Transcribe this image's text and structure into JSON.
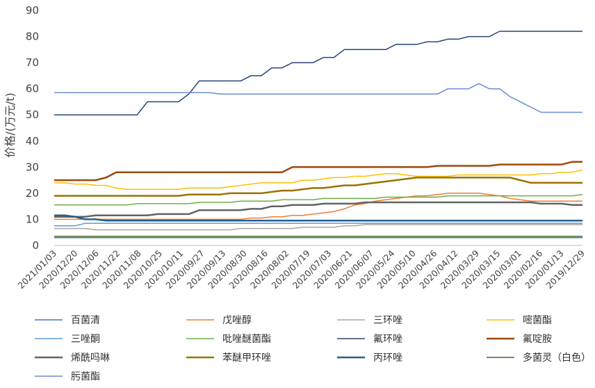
{
  "chart_data": {
    "type": "line",
    "ylabel": "价格/(万元/t)",
    "ylim": [
      0,
      90
    ],
    "yticks": [
      0,
      10,
      20,
      30,
      40,
      50,
      60,
      70,
      80,
      90
    ],
    "grid": false,
    "legend_position": "bottom",
    "x_tick_labels": [
      "2021/01/03",
      "2020/12/20",
      "2020/12/06",
      "2020/11/22",
      "2020/11/08",
      "2020/10/25",
      "2020/10/11",
      "2020/09/27",
      "2020/09/13",
      "2020/08/30",
      "2020/08/16",
      "2020/08/02",
      "2020/07/19",
      "2020/07/03",
      "2020/06/21",
      "2020/06/07",
      "2020/05/24",
      "2020/05/10",
      "2020/04/26",
      "2020/04/12",
      "2020/03/29",
      "2020/03/15",
      "2020/03/01",
      "2020/02/16",
      "2020/01/13",
      "2019/12/29"
    ],
    "x": [
      "2021/01/03",
      "",
      "2020/12/20",
      "",
      "2020/12/06",
      "",
      "2020/11/22",
      "",
      "2020/11/08",
      "",
      "2020/10/25",
      "",
      "2020/10/11",
      "",
      "2020/09/27",
      "",
      "2020/09/13",
      "",
      "2020/08/30",
      "",
      "2020/08/16",
      "",
      "2020/08/02",
      "",
      "2020/07/19",
      "",
      "2020/07/03",
      "",
      "2020/06/21",
      "",
      "2020/06/07",
      "",
      "2020/05/24",
      "",
      "2020/05/10",
      "",
      "2020/04/26",
      "",
      "2020/04/12",
      "",
      "2020/03/29",
      "",
      "2020/03/15",
      "",
      "2020/03/01",
      "",
      "2020/02/16",
      "",
      "2020/01/13",
      "",
      "2019/12/29",
      ""
    ],
    "series": [
      {
        "name": "百菌清",
        "color": "#4472C4",
        "width": 1.5,
        "values": [
          3,
          3,
          3,
          3,
          3,
          3,
          3,
          3,
          3,
          3,
          3,
          3,
          3,
          3,
          3,
          3,
          3,
          3,
          3,
          3,
          3,
          3,
          3,
          3,
          3,
          3,
          3,
          3,
          3,
          3,
          3,
          3,
          3,
          3,
          3,
          3,
          3,
          3,
          3,
          3,
          3,
          3,
          3,
          3,
          3,
          3,
          3,
          3,
          3,
          3,
          3,
          3
        ]
      },
      {
        "name": "戊唑醇",
        "color": "#ED7D31",
        "width": 1.5,
        "values": [
          10,
          10,
          10,
          10,
          10,
          10,
          10,
          10,
          10,
          10,
          10,
          10,
          10,
          10,
          10,
          10,
          10,
          10,
          10,
          10.5,
          10.5,
          11,
          11,
          11.5,
          11.5,
          12,
          12.5,
          13,
          14,
          15.5,
          16,
          17,
          17.5,
          18,
          18.5,
          19,
          19,
          19.5,
          20,
          20,
          20,
          20,
          19.5,
          19,
          18,
          17.5,
          17,
          17,
          17,
          17,
          17,
          17
        ]
      },
      {
        "name": "三环唑",
        "color": "#A5A5A5",
        "width": 1.5,
        "values": [
          6.5,
          6.5,
          6.5,
          6.5,
          6,
          6,
          6,
          6,
          6,
          6,
          6,
          6,
          6,
          6,
          6,
          6,
          6,
          6,
          6.5,
          6.5,
          6.5,
          6.5,
          6.5,
          6.5,
          7,
          7,
          7,
          7,
          7.5,
          7.5,
          8,
          8,
          8,
          8,
          8,
          8,
          8,
          8,
          8,
          8,
          8,
          8,
          8,
          8,
          8,
          8,
          8,
          8,
          8,
          8,
          8,
          8
        ]
      },
      {
        "name": "嘧菌酯",
        "color": "#FFC000",
        "width": 1.5,
        "values": [
          24,
          24,
          23.5,
          23.5,
          23,
          23,
          22,
          21.5,
          21.5,
          21.5,
          21.5,
          21.5,
          21.5,
          22,
          22,
          22,
          22,
          22.5,
          23,
          23.5,
          24,
          24,
          24,
          24,
          25,
          25,
          25.5,
          26,
          26,
          26.5,
          26.5,
          27,
          27.5,
          27.5,
          27,
          26.5,
          26.5,
          26.5,
          26.5,
          27,
          27,
          27,
          27,
          27,
          27,
          27,
          27,
          27.5,
          27.5,
          28,
          28,
          29
        ]
      },
      {
        "name": "三唑酮",
        "color": "#5B9BD5",
        "width": 1.5,
        "values": [
          7.5,
          7.5,
          7.5,
          8.5,
          8.5,
          8.5,
          8.5,
          8.5,
          8.5,
          8.5,
          8.5,
          8.5,
          8.5,
          8.5,
          8.5,
          8.5,
          8.5,
          8.5,
          8.5,
          8.5,
          8.5,
          8.5,
          8.5,
          8.5,
          8.5,
          8.5,
          8.5,
          8.5,
          8.5,
          8.5,
          8.5,
          8.5,
          8.5,
          8.5,
          8.5,
          8.5,
          8.5,
          8.5,
          8.5,
          8.5,
          8.5,
          8.5,
          8.5,
          8.5,
          8.5,
          8.5,
          8.5,
          8.5,
          8.5,
          8.5,
          8.5,
          8.5
        ]
      },
      {
        "name": "吡唑醚菌酯",
        "color": "#70AD47",
        "width": 1.5,
        "values": [
          15.5,
          15.5,
          15.5,
          15.5,
          15.5,
          15.5,
          15.5,
          15.5,
          16,
          16,
          16,
          16,
          16,
          16,
          16.5,
          16.5,
          16.5,
          16.5,
          17,
          17,
          17,
          17,
          17.5,
          17.5,
          17.5,
          17.5,
          18,
          18,
          18,
          18,
          18,
          18,
          18.5,
          18.5,
          18.5,
          18.5,
          18.5,
          18.5,
          19,
          19,
          19,
          19,
          19,
          19,
          19,
          19,
          19,
          19,
          19,
          19,
          19,
          19.5
        ]
      },
      {
        "name": "氟环唑",
        "color": "#264478",
        "width": 1.5,
        "values": [
          50,
          50,
          50,
          50,
          50,
          50,
          50,
          50,
          50,
          55,
          55,
          55,
          55,
          58,
          63,
          63,
          63,
          63,
          63,
          65,
          65,
          68,
          68,
          70,
          70,
          70,
          72,
          72,
          75,
          75,
          75,
          75,
          75,
          77,
          77,
          77,
          78,
          78,
          79,
          79,
          80,
          80,
          80,
          82,
          82,
          82,
          82,
          82,
          82,
          82,
          82,
          82
        ]
      },
      {
        "name": "氟啶胺",
        "color": "#9E480E",
        "width": 2.5,
        "values": [
          25,
          25,
          25,
          25,
          25,
          26,
          28,
          28,
          28,
          28,
          28,
          28,
          28,
          28,
          28,
          28,
          28,
          28,
          28,
          28,
          28,
          28,
          28,
          30,
          30,
          30,
          30,
          30,
          30,
          30,
          30,
          30,
          30,
          30,
          30,
          30,
          30,
          30.5,
          30.5,
          30.5,
          30.5,
          30.5,
          30.5,
          31,
          31,
          31,
          31,
          31,
          31,
          31,
          32,
          32
        ]
      },
      {
        "name": "烯酰吗啉",
        "color": "#636363",
        "width": 2.5,
        "values": [
          11,
          11,
          11,
          11,
          11.5,
          11.5,
          11.5,
          11.5,
          11.5,
          11.5,
          12,
          12,
          12,
          12,
          13.5,
          13.5,
          13.5,
          13.5,
          13.5,
          14,
          14,
          15,
          15,
          15.5,
          15.5,
          15.5,
          16,
          16,
          16,
          16,
          16.5,
          16.5,
          16.5,
          16.5,
          16.5,
          16.5,
          16.5,
          16.5,
          16.5,
          16.5,
          16.5,
          16.5,
          16.5,
          16.5,
          16.5,
          16.5,
          16.5,
          16,
          16,
          16,
          15.5,
          15.5
        ]
      },
      {
        "name": "苯醚甲环唑",
        "color": "#997300",
        "width": 2.5,
        "values": [
          19,
          19,
          19,
          19,
          19,
          19,
          19,
          19,
          19,
          19,
          19,
          19,
          19,
          19.5,
          19.5,
          19.5,
          19.5,
          20,
          20,
          20,
          20,
          20.5,
          21,
          21,
          21.5,
          22,
          22,
          22.5,
          23,
          23,
          23.5,
          24,
          24.5,
          25,
          25.5,
          26,
          26,
          26,
          26,
          26,
          26,
          26,
          26,
          26,
          26,
          25,
          24,
          24,
          24,
          24,
          24,
          24
        ]
      },
      {
        "name": "丙环唑",
        "color": "#255E91",
        "width": 2.5,
        "values": [
          11.5,
          11.5,
          11,
          10,
          10,
          9.5,
          9.5,
          9.5,
          9.5,
          9.5,
          9.5,
          9.5,
          9.5,
          9.5,
          9.5,
          9.5,
          9.5,
          9.5,
          9.5,
          9.5,
          9.5,
          9.5,
          9.5,
          9.5,
          9.5,
          9.5,
          9.5,
          9.5,
          9.5,
          9.5,
          9.5,
          9.5,
          9.5,
          9.5,
          9.5,
          9.5,
          9.5,
          9.5,
          9.5,
          9.5,
          9.5,
          9.5,
          9.5,
          9.5,
          9.5,
          9.5,
          9.5,
          9.5,
          9.5,
          9.5,
          9.5,
          9.5
        ]
      },
      {
        "name": "多菌灵（白色）",
        "color": "#43682B",
        "width": 1.5,
        "values": [
          3.5,
          3.5,
          3.5,
          3.5,
          3.5,
          3.5,
          3.5,
          3.5,
          3.5,
          3.5,
          3.5,
          3.5,
          3.5,
          3.5,
          3.5,
          3.5,
          3.5,
          3.5,
          3.5,
          3.5,
          3.5,
          3.5,
          3.5,
          3.5,
          3.5,
          3.5,
          3.5,
          3.5,
          3.5,
          3.5,
          3.5,
          3.5,
          3.5,
          3.5,
          3.5,
          3.5,
          3.5,
          3.5,
          3.5,
          3.5,
          3.5,
          3.5,
          3.5,
          3.5,
          3.5,
          3.5,
          3.5,
          3.5,
          3.5,
          3.5,
          3.5,
          3.5
        ]
      },
      {
        "name": "肟菌酯",
        "color": "#698ED0",
        "width": 1.5,
        "values": [
          58.5,
          58.5,
          58.5,
          58.5,
          58.5,
          58.5,
          58.5,
          58.5,
          58.5,
          58.5,
          58.5,
          58.5,
          58.5,
          58.5,
          58.5,
          58.5,
          58,
          58,
          58,
          58,
          58,
          58,
          58,
          58,
          58,
          58,
          58,
          58,
          58,
          58,
          58,
          58,
          58,
          58,
          58,
          58,
          58,
          58,
          60,
          60,
          60,
          62,
          60,
          60,
          57,
          55,
          53,
          51,
          51,
          51,
          51,
          51
        ]
      }
    ]
  }
}
